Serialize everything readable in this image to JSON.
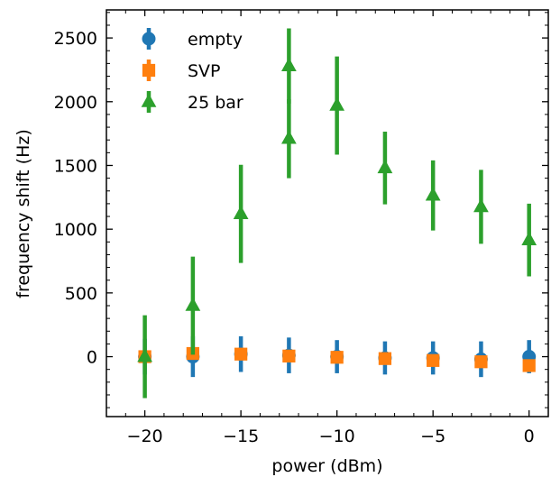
{
  "chart_data": {
    "type": "scatter",
    "xlabel": "power (dBm)",
    "ylabel": "frequency shift (Hz)",
    "xlim": [
      -22,
      1
    ],
    "ylim": [
      -470,
      2720
    ],
    "xticks": [
      -20,
      -15,
      -10,
      -5,
      0
    ],
    "xtick_labels": [
      "−20",
      "−15",
      "−10",
      "−5",
      "0"
    ],
    "yticks": [
      0,
      500,
      1000,
      1500,
      2000,
      2500
    ],
    "ytick_labels": [
      "0",
      "500",
      "1000",
      "1500",
      "2000",
      "2500"
    ],
    "legend_position": "top-left",
    "grid": false,
    "series": [
      {
        "name": "empty",
        "color": "#1f77b4",
        "marker": "circle",
        "points": [
          {
            "x": -20,
            "y": 0,
            "yerr": 140
          },
          {
            "x": -17.5,
            "y": 0,
            "yerr": 160
          },
          {
            "x": -15,
            "y": 20,
            "yerr": 140
          },
          {
            "x": -12.5,
            "y": 10,
            "yerr": 140
          },
          {
            "x": -10,
            "y": 0,
            "yerr": 130
          },
          {
            "x": -7.5,
            "y": -10,
            "yerr": 130
          },
          {
            "x": -5,
            "y": -10,
            "yerr": 130
          },
          {
            "x": -2.5,
            "y": -20,
            "yerr": 140
          },
          {
            "x": 0,
            "y": 0,
            "yerr": 130
          }
        ]
      },
      {
        "name": "SVP",
        "color": "#ff7f0e",
        "marker": "square",
        "points": [
          {
            "x": -20,
            "y": 0,
            "yerr": 0
          },
          {
            "x": -17.5,
            "y": 25,
            "yerr": 0
          },
          {
            "x": -15,
            "y": 20,
            "yerr": 0
          },
          {
            "x": -12.5,
            "y": 5,
            "yerr": 0
          },
          {
            "x": -10,
            "y": -5,
            "yerr": 0
          },
          {
            "x": -7.5,
            "y": -15,
            "yerr": 0
          },
          {
            "x": -5,
            "y": -30,
            "yerr": 0
          },
          {
            "x": -2.5,
            "y": -40,
            "yerr": 0
          },
          {
            "x": 0,
            "y": -70,
            "yerr": 0
          }
        ]
      },
      {
        "name": "25 bar",
        "color": "#2ca02c",
        "marker": "triangle",
        "points": [
          {
            "x": -20,
            "y": 0,
            "yerr": 325
          },
          {
            "x": -17.5,
            "y": 400,
            "yerr": 385
          },
          {
            "x": -15,
            "y": 1120,
            "yerr": 385
          },
          {
            "x": -12.5,
            "y": 1710,
            "yerr": 310
          },
          {
            "x": -12.5,
            "y": 2280,
            "yerr": 295
          },
          {
            "x": -10,
            "y": 1970,
            "yerr": 385
          },
          {
            "x": -7.5,
            "y": 1480,
            "yerr": 285
          },
          {
            "x": -5,
            "y": 1265,
            "yerr": 275
          },
          {
            "x": -2.5,
            "y": 1175,
            "yerr": 290
          },
          {
            "x": 0,
            "y": 915,
            "yerr": 285
          }
        ]
      }
    ]
  }
}
